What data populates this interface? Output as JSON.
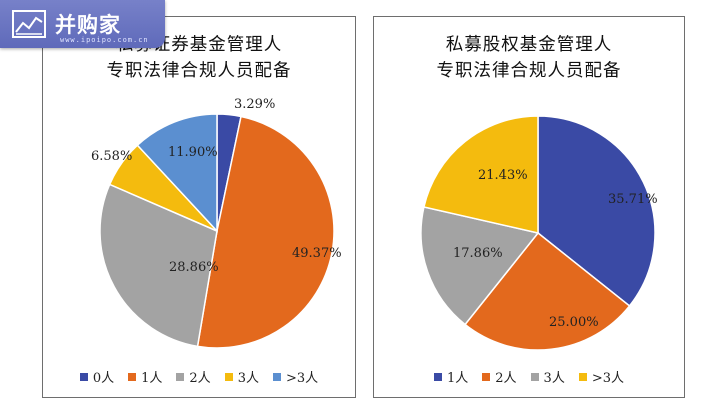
{
  "logo": {
    "text": "并购家",
    "url": "www.ipoipo.com.cn"
  },
  "chart_data": [
    {
      "type": "pie",
      "title_line1": "私募证券基金管理人",
      "title_line2": "专职法律合规人员配备",
      "categories": [
        "0人",
        "1人",
        "2人",
        "3人",
        ">3人"
      ],
      "values": [
        3.29,
        49.37,
        28.86,
        6.58,
        11.9
      ],
      "labels": [
        "3.29%",
        "49.37%",
        "28.86%",
        "6.58%",
        "11.90%"
      ],
      "colors": [
        "#3a4aa5",
        "#e3691d",
        "#a3a3a3",
        "#f4bb0e",
        "#5b8fd0"
      ],
      "legend_position": "bottom"
    },
    {
      "type": "pie",
      "title_line1": "私募股权基金管理人",
      "title_line2": "专职法律合规人员配备",
      "categories": [
        "1人",
        "2人",
        "3人",
        ">3人"
      ],
      "values": [
        35.71,
        25.0,
        17.86,
        21.43
      ],
      "labels": [
        "35.71%",
        "25.00%",
        "17.86%",
        "21.43%"
      ],
      "colors": [
        "#3a4aa5",
        "#e3691d",
        "#a3a3a3",
        "#f4bb0e"
      ],
      "legend_position": "bottom"
    }
  ]
}
